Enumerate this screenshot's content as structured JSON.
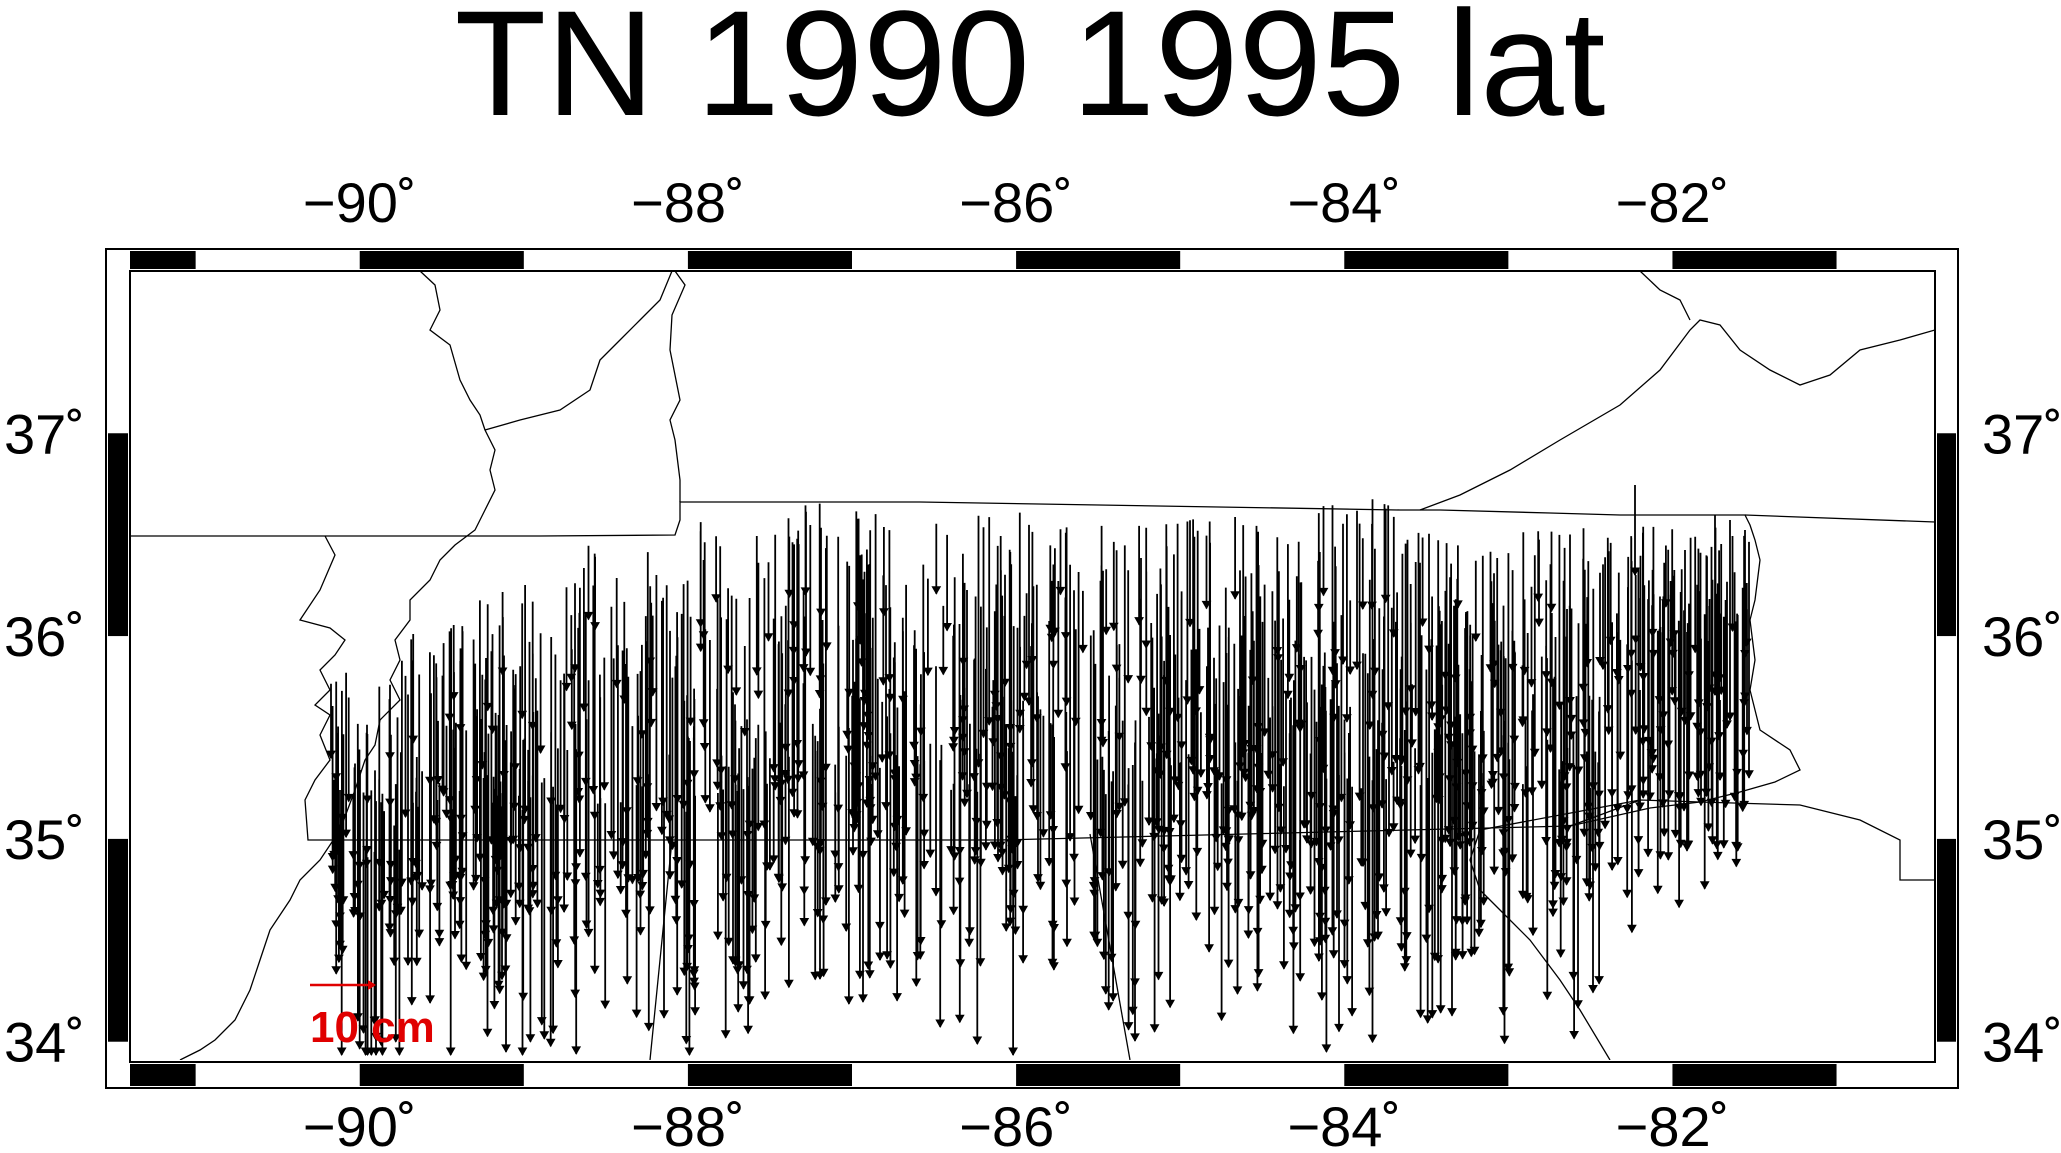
{
  "title": "TN 1990 1995 lat",
  "map": {
    "lon_range": [
      -91.4,
      -80.4
    ],
    "lat_range": [
      33.9,
      37.8
    ],
    "lon_ticks": [
      -90,
      -88,
      -86,
      -84,
      -82
    ],
    "lat_ticks": [
      34,
      35,
      36,
      37
    ],
    "lon_tick_labels": [
      "−90˚",
      "−88˚",
      "−86˚",
      "−84˚",
      "−82˚"
    ],
    "lat_tick_labels": [
      "34˚",
      "35˚",
      "36˚",
      "37˚"
    ],
    "frame_style": "black-white alternating band"
  },
  "scale_arrow": {
    "label": "10 cm",
    "color": "#e00000"
  },
  "colors": {
    "vectors": "#000000",
    "borders": "#000000",
    "scale": "#e00000"
  }
}
